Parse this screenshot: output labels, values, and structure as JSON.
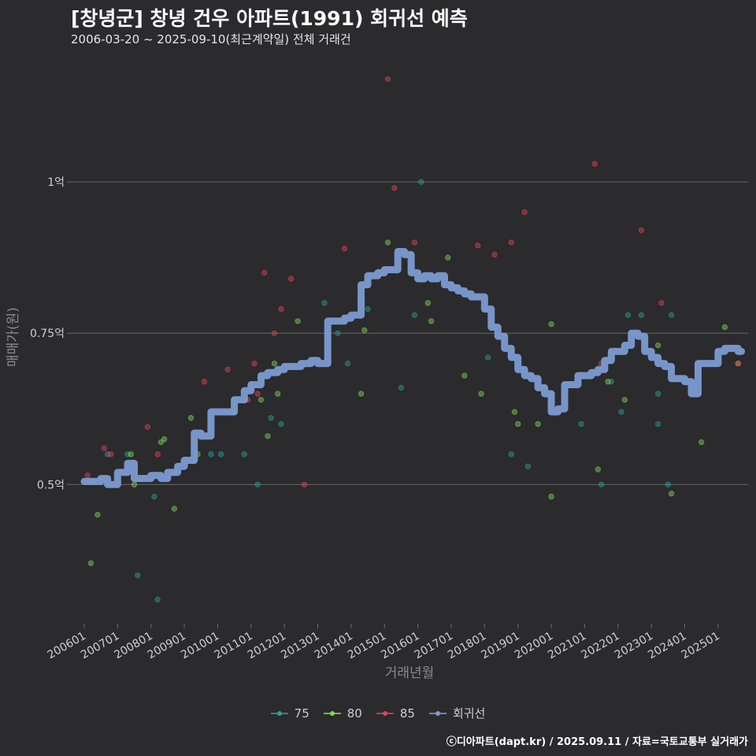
{
  "header": {
    "title": "[창녕군] 창녕 건우 아파트(1991) 회귀선 예측",
    "subtitle": "2006-03-20 ~ 2025-09-10(최근계약일) 전체 거래건"
  },
  "footer": {
    "credit": "ⓒ디아파트(dapt.kr) / 2025.09.11 / 자료=국토교통부 실거래가"
  },
  "colors": {
    "s75": "#2aa198",
    "s80": "#7ed957",
    "s85": "#e0445a",
    "regression": "#7b9bd1",
    "grid": "#6a6a6a",
    "axis_text": "#cfcfcf",
    "axis_title": "#8a8a8a"
  },
  "chart_data": {
    "type": "scatter",
    "title": "[창녕군] 창녕 건우 아파트(1991) 회귀선 예측",
    "xlabel": "거래년월",
    "ylabel": "매매가(원)",
    "xlim": [
      2005.6,
      2025.9
    ],
    "ylim": [
      0.27,
      1.22
    ],
    "y_unit": "억",
    "yticks": [
      {
        "value": 0.5,
        "label": "0.5억"
      },
      {
        "value": 0.75,
        "label": "0.75억"
      },
      {
        "value": 1.0,
        "label": "1억"
      }
    ],
    "xticks": [
      {
        "value": 2006,
        "label": "200601"
      },
      {
        "value": 2007,
        "label": "200701"
      },
      {
        "value": 2008,
        "label": "200801"
      },
      {
        "value": 2009,
        "label": "200901"
      },
      {
        "value": 2010,
        "label": "201001"
      },
      {
        "value": 2011,
        "label": "201101"
      },
      {
        "value": 2012,
        "label": "201201"
      },
      {
        "value": 2013,
        "label": "201301"
      },
      {
        "value": 2014,
        "label": "201401"
      },
      {
        "value": 2015,
        "label": "201501"
      },
      {
        "value": 2016,
        "label": "201601"
      },
      {
        "value": 2017,
        "label": "201701"
      },
      {
        "value": 2018,
        "label": "201801"
      },
      {
        "value": 2019,
        "label": "201901"
      },
      {
        "value": 2020,
        "label": "202001"
      },
      {
        "value": 2021,
        "label": "202101"
      },
      {
        "value": 2022,
        "label": "202201"
      },
      {
        "value": 2023,
        "label": "202301"
      },
      {
        "value": 2024,
        "label": "202401"
      },
      {
        "value": 2025,
        "label": "202501"
      }
    ],
    "legend": [
      {
        "key": "s75",
        "label": "75"
      },
      {
        "key": "s80",
        "label": "80"
      },
      {
        "key": "s85",
        "label": "85"
      },
      {
        "key": "regression",
        "label": "회귀선"
      }
    ],
    "series": [
      {
        "name": "75",
        "key": "s75",
        "points": [
          [
            2006.7,
            0.55
          ],
          [
            2007.3,
            0.55
          ],
          [
            2007.6,
            0.35
          ],
          [
            2008.1,
            0.48
          ],
          [
            2008.2,
            0.31
          ],
          [
            2008.8,
            0.52
          ],
          [
            2009.8,
            0.55
          ],
          [
            2010.1,
            0.55
          ],
          [
            2010.8,
            0.55
          ],
          [
            2011.2,
            0.5
          ],
          [
            2011.6,
            0.61
          ],
          [
            2011.9,
            0.6
          ],
          [
            2013.2,
            0.8
          ],
          [
            2013.6,
            0.75
          ],
          [
            2013.9,
            0.7
          ],
          [
            2014.5,
            0.79
          ],
          [
            2015.5,
            0.66
          ],
          [
            2015.9,
            0.78
          ],
          [
            2016.1,
            1.0
          ],
          [
            2017.8,
            0.81
          ],
          [
            2018.1,
            0.71
          ],
          [
            2018.8,
            0.55
          ],
          [
            2019.3,
            0.53
          ],
          [
            2020.9,
            0.6
          ],
          [
            2021.5,
            0.5
          ],
          [
            2021.8,
            0.67
          ],
          [
            2022.1,
            0.62
          ],
          [
            2022.3,
            0.78
          ],
          [
            2022.7,
            0.78
          ],
          [
            2023.2,
            0.6
          ],
          [
            2023.5,
            0.5
          ],
          [
            2023.6,
            0.78
          ],
          [
            2023.2,
            0.65
          ]
        ]
      },
      {
        "name": "80",
        "key": "s80",
        "points": [
          [
            2006.2,
            0.37
          ],
          [
            2006.4,
            0.45
          ],
          [
            2007.4,
            0.55
          ],
          [
            2007.5,
            0.5
          ],
          [
            2008.3,
            0.57
          ],
          [
            2008.4,
            0.575
          ],
          [
            2008.7,
            0.46
          ],
          [
            2009.2,
            0.61
          ],
          [
            2009.4,
            0.55
          ],
          [
            2010.5,
            0.62
          ],
          [
            2011.3,
            0.64
          ],
          [
            2011.5,
            0.58
          ],
          [
            2011.8,
            0.65
          ],
          [
            2011.7,
            0.7
          ],
          [
            2012.4,
            0.77
          ],
          [
            2014.3,
            0.65
          ],
          [
            2014.4,
            0.755
          ],
          [
            2015.1,
            0.9
          ],
          [
            2016.3,
            0.8
          ],
          [
            2016.4,
            0.77
          ],
          [
            2016.9,
            0.875
          ],
          [
            2017.4,
            0.68
          ],
          [
            2017.9,
            0.65
          ],
          [
            2018.9,
            0.62
          ],
          [
            2019.0,
            0.6
          ],
          [
            2019.6,
            0.6
          ],
          [
            2020.0,
            0.48
          ],
          [
            2020.0,
            0.765
          ],
          [
            2021.4,
            0.525
          ],
          [
            2021.7,
            0.67
          ],
          [
            2022.2,
            0.64
          ],
          [
            2023.6,
            0.485
          ],
          [
            2024.5,
            0.57
          ],
          [
            2025.2,
            0.76
          ],
          [
            2025.6,
            0.7
          ],
          [
            2023.2,
            0.73
          ]
        ]
      },
      {
        "name": "85",
        "key": "s85",
        "points": [
          [
            2006.1,
            0.515
          ],
          [
            2006.6,
            0.56
          ],
          [
            2006.8,
            0.55
          ],
          [
            2007.0,
            0.5
          ],
          [
            2007.9,
            0.595
          ],
          [
            2008.2,
            0.55
          ],
          [
            2009.6,
            0.67
          ],
          [
            2010.3,
            0.69
          ],
          [
            2010.9,
            0.64
          ],
          [
            2011.2,
            0.65
          ],
          [
            2011.4,
            0.85
          ],
          [
            2011.7,
            0.75
          ],
          [
            2011.9,
            0.79
          ],
          [
            2012.2,
            0.84
          ],
          [
            2012.6,
            0.5
          ],
          [
            2013.8,
            0.89
          ],
          [
            2014.3,
            0.8
          ],
          [
            2015.1,
            1.17
          ],
          [
            2015.3,
            0.99
          ],
          [
            2015.9,
            0.9
          ],
          [
            2017.8,
            0.895
          ],
          [
            2018.3,
            0.88
          ],
          [
            2018.8,
            0.9
          ],
          [
            2019.2,
            0.95
          ],
          [
            2021.3,
            1.03
          ],
          [
            2021.5,
            0.7
          ],
          [
            2022.7,
            0.92
          ],
          [
            2023.3,
            0.8
          ],
          [
            2025.6,
            0.7
          ],
          [
            2011.1,
            0.7
          ]
        ]
      }
    ],
    "regression": {
      "name": "회귀선",
      "x": [
        2006.0,
        2006.3,
        2006.5,
        2006.7,
        2007.0,
        2007.3,
        2007.5,
        2007.8,
        2008.0,
        2008.3,
        2008.5,
        2008.8,
        2009.0,
        2009.3,
        2009.5,
        2009.8,
        2010.0,
        2010.3,
        2010.5,
        2010.8,
        2011.0,
        2011.3,
        2011.5,
        2011.8,
        2012.0,
        2012.3,
        2012.5,
        2012.8,
        2013.0,
        2013.3,
        2013.5,
        2013.8,
        2014.0,
        2014.3,
        2014.5,
        2014.8,
        2015.0,
        2015.2,
        2015.4,
        2015.6,
        2015.8,
        2016.0,
        2016.2,
        2016.4,
        2016.6,
        2016.8,
        2017.0,
        2017.2,
        2017.4,
        2017.6,
        2017.8,
        2018.0,
        2018.2,
        2018.4,
        2018.6,
        2018.8,
        2019.0,
        2019.2,
        2019.4,
        2019.6,
        2019.8,
        2020.0,
        2020.2,
        2020.4,
        2020.6,
        2020.8,
        2021.0,
        2021.2,
        2021.4,
        2021.6,
        2021.8,
        2022.0,
        2022.2,
        2022.4,
        2022.6,
        2022.8,
        2023.0,
        2023.2,
        2023.4,
        2023.6,
        2023.8,
        2024.0,
        2024.2,
        2024.4,
        2024.6,
        2024.8,
        2025.0,
        2025.2,
        2025.4,
        2025.6,
        2025.7
      ],
      "y": [
        0.505,
        0.505,
        0.51,
        0.5,
        0.52,
        0.535,
        0.51,
        0.51,
        0.515,
        0.51,
        0.52,
        0.53,
        0.54,
        0.585,
        0.58,
        0.62,
        0.62,
        0.62,
        0.64,
        0.655,
        0.665,
        0.68,
        0.685,
        0.69,
        0.695,
        0.695,
        0.7,
        0.705,
        0.7,
        0.77,
        0.77,
        0.775,
        0.78,
        0.83,
        0.845,
        0.85,
        0.855,
        0.855,
        0.885,
        0.88,
        0.85,
        0.84,
        0.845,
        0.84,
        0.845,
        0.83,
        0.825,
        0.82,
        0.815,
        0.81,
        0.81,
        0.79,
        0.76,
        0.745,
        0.725,
        0.71,
        0.69,
        0.68,
        0.675,
        0.66,
        0.65,
        0.62,
        0.625,
        0.665,
        0.665,
        0.68,
        0.68,
        0.685,
        0.69,
        0.705,
        0.72,
        0.72,
        0.73,
        0.75,
        0.745,
        0.72,
        0.71,
        0.7,
        0.695,
        0.675,
        0.675,
        0.67,
        0.65,
        0.7,
        0.7,
        0.7,
        0.72,
        0.725,
        0.725,
        0.72,
        0.72
      ]
    }
  }
}
